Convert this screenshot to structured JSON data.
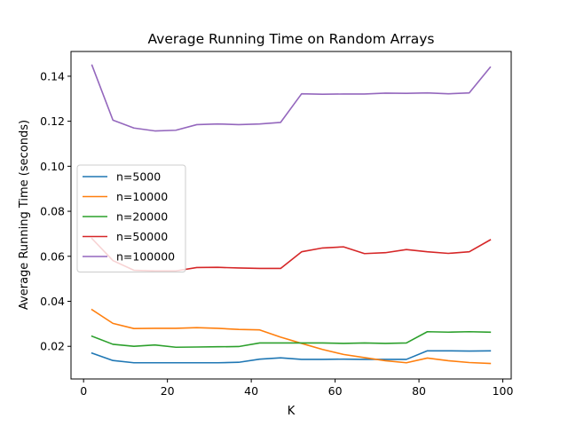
{
  "chart_data": {
    "type": "line",
    "title": "Average Running Time on Random Arrays",
    "xlabel": "K",
    "ylabel": "Average Running Time (seconds)",
    "xlim": [
      -3,
      102
    ],
    "ylim": [
      0.0055,
      0.151
    ],
    "xticks": [
      0,
      20,
      40,
      60,
      80,
      100
    ],
    "yticks": [
      0.02,
      0.04,
      0.06,
      0.08,
      0.1,
      0.12,
      0.14
    ],
    "grid": false,
    "legend_position": "center-left",
    "x": [
      2,
      7,
      12,
      17,
      22,
      27,
      32,
      37,
      42,
      47,
      52,
      57,
      62,
      67,
      72,
      77,
      82,
      87,
      92,
      97
    ],
    "series": [
      {
        "name": "n=5000",
        "color": "#1f77b4",
        "values": [
          0.017,
          0.0137,
          0.0127,
          0.0127,
          0.0127,
          0.0127,
          0.0127,
          0.0129,
          0.0143,
          0.0149,
          0.0142,
          0.0142,
          0.0143,
          0.0142,
          0.0142,
          0.0142,
          0.018,
          0.018,
          0.0179,
          0.018
        ]
      },
      {
        "name": "n=10000",
        "color": "#ff7f0e",
        "values": [
          0.0363,
          0.0302,
          0.0279,
          0.028,
          0.028,
          0.0283,
          0.028,
          0.0275,
          0.0273,
          0.0241,
          0.0213,
          0.0186,
          0.0164,
          0.015,
          0.0136,
          0.0127,
          0.0148,
          0.0136,
          0.0128,
          0.0124
        ]
      },
      {
        "name": "n=20000",
        "color": "#2ca02c",
        "values": [
          0.0245,
          0.0209,
          0.02,
          0.0206,
          0.0196,
          0.0197,
          0.0198,
          0.0199,
          0.0215,
          0.0215,
          0.0215,
          0.0215,
          0.0213,
          0.0215,
          0.0213,
          0.0215,
          0.0265,
          0.0263,
          0.0265,
          0.0263
        ]
      },
      {
        "name": "n=50000",
        "color": "#d62728",
        "values": [
          0.0679,
          0.0581,
          0.0538,
          0.0535,
          0.0535,
          0.055,
          0.0551,
          0.0548,
          0.0546,
          0.0546,
          0.062,
          0.0637,
          0.0642,
          0.0612,
          0.0616,
          0.063,
          0.062,
          0.0613,
          0.062,
          0.0673
        ]
      },
      {
        "name": "n=100000",
        "color": "#9467bd",
        "values": [
          0.1449,
          0.1205,
          0.117,
          0.1157,
          0.116,
          0.1185,
          0.1188,
          0.1185,
          0.1188,
          0.1195,
          0.1322,
          0.132,
          0.1321,
          0.1321,
          0.1325,
          0.1324,
          0.1326,
          0.1322,
          0.1326,
          0.144
        ]
      }
    ]
  }
}
